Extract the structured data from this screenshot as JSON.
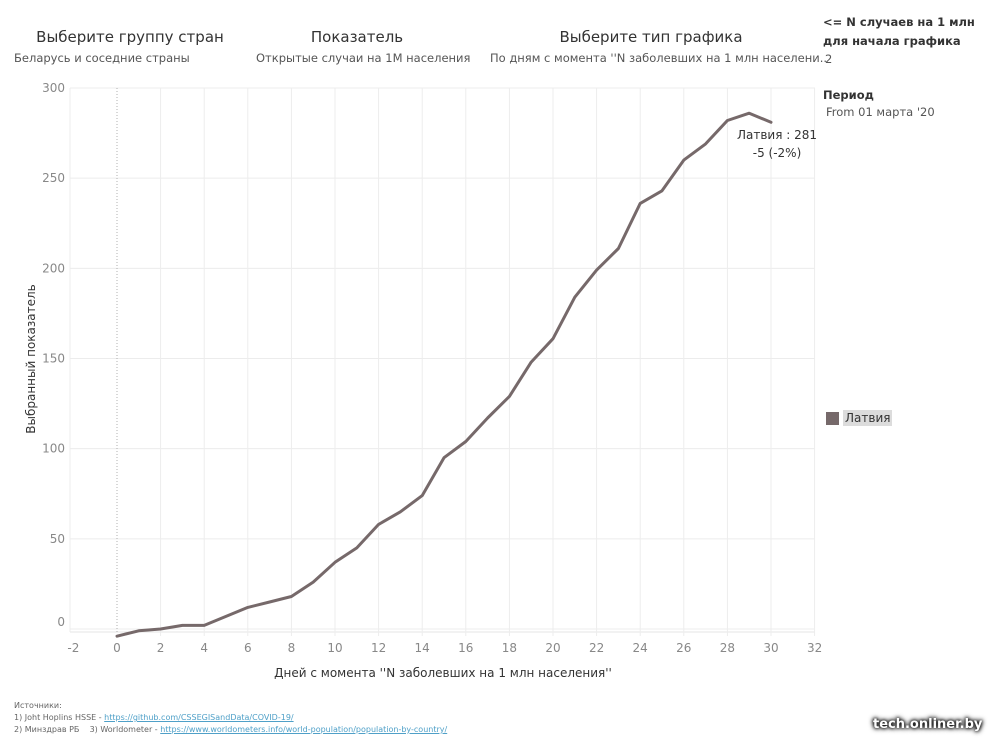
{
  "filters": {
    "country_group": {
      "title": "Выберите группу стран",
      "value": "Беларусь и соседние страны"
    },
    "indicator": {
      "title": "Показатель",
      "value": "Открытые случаи на 1М населения"
    },
    "chart_type": {
      "title": "Выберите тип графика",
      "value": "По дням с момента ''N заболевших на 1 млн населени.."
    },
    "threshold": {
      "title_line1": "<= N случаев на 1 млн",
      "title_line2": "для начала графика",
      "value": "2"
    },
    "period": {
      "title": "Период",
      "value": "From 01 марта '20"
    }
  },
  "legend": {
    "items": [
      {
        "label": "Латвия",
        "color": "#76696a"
      }
    ]
  },
  "sources": {
    "header": "Источники:",
    "line1_prefix": "1) Joht Hoplins HSSE - ",
    "line1_link": "https://github.com/CSSEGISandData/COVID-19/",
    "line2_prefix": "2) Минздрав РБ    3) Worldometer - ",
    "line2_link": "https://www.worldometers.info/world-population/population-by-country/"
  },
  "watermark": "tech.onliner.by",
  "chart_data": {
    "type": "line",
    "title": "",
    "xlabel": "Дней с момента ''N заболевших на 1 млн населения''",
    "ylabel": "Выбранный показатель",
    "xlim": [
      -3,
      33
    ],
    "ylim": [
      -5,
      300
    ],
    "xticks": [
      -2,
      0,
      2,
      4,
      6,
      8,
      10,
      12,
      14,
      16,
      18,
      20,
      22,
      24,
      26,
      28,
      30,
      32
    ],
    "yticks": [
      0,
      50,
      100,
      150,
      200,
      250,
      300
    ],
    "grid": true,
    "reference_line_x": 0,
    "legend_position": "right",
    "series": [
      {
        "name": "Латвия",
        "color": "#76696a",
        "x": [
          0,
          1,
          2,
          3,
          4,
          5,
          6,
          7,
          8,
          9,
          10,
          11,
          12,
          13,
          14,
          15,
          16,
          17,
          18,
          19,
          20,
          21,
          22,
          23,
          24,
          25,
          26,
          27,
          28,
          29,
          30
        ],
        "values": [
          -4,
          -1,
          0,
          2,
          2,
          7,
          12,
          15,
          18,
          26,
          37,
          45,
          58,
          65,
          74,
          95,
          104,
          117,
          129,
          148,
          161,
          184,
          199,
          211,
          236,
          243,
          260,
          269,
          282,
          286,
          281
        ]
      }
    ],
    "annotation": {
      "line1": "Латвия : 281",
      "line2": "-5 (-2%)"
    }
  }
}
